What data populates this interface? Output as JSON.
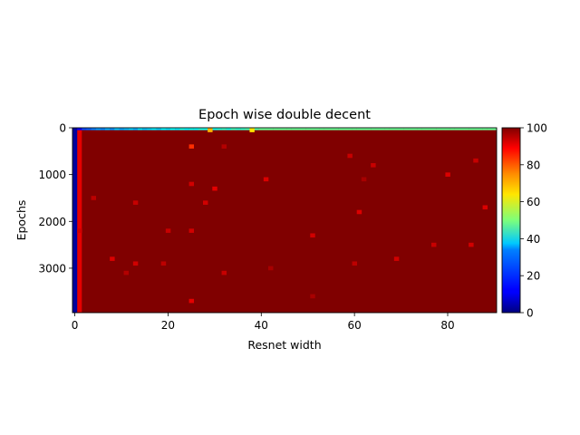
{
  "chart_data": {
    "type": "heatmap",
    "title": "Epoch wise double decent",
    "xlabel": "Resnet width",
    "ylabel": "Epochs",
    "xlim": [
      -0.5,
      90.5
    ],
    "ylim": [
      3950,
      0
    ],
    "x_ticks": [
      0,
      20,
      40,
      60,
      80
    ],
    "y_ticks": [
      0,
      1000,
      2000,
      3000
    ],
    "n_widths": 91,
    "n_epochs": 3950,
    "colormap": "jet",
    "colorbar": {
      "vmin": 0,
      "vmax": 100,
      "ticks": [
        0,
        20,
        40,
        60,
        80,
        100
      ]
    },
    "background_value": 100,
    "first_epoch_row": {
      "epoch_range": [
        0,
        50
      ],
      "value_from_width_40": 48,
      "values_widths_0_39": [
        5,
        12,
        20,
        22,
        25,
        28,
        26,
        30,
        27,
        32,
        29,
        31,
        33,
        30,
        35,
        32,
        34,
        36,
        33,
        37,
        35,
        38,
        36,
        40,
        37,
        39,
        38,
        41,
        40,
        42,
        39,
        41,
        43,
        40,
        44,
        42,
        43,
        45,
        44,
        46
      ]
    },
    "low_width_columns": [
      {
        "width": 0,
        "value": 3
      },
      {
        "width": 1,
        "value": 90
      }
    ],
    "outliers": [
      {
        "width": 25,
        "epoch": 400,
        "value": 83
      },
      {
        "width": 25,
        "epoch": 1200,
        "value": 92
      },
      {
        "width": 30,
        "epoch": 1300,
        "value": 90
      },
      {
        "width": 28,
        "epoch": 1600,
        "value": 92
      },
      {
        "width": 13,
        "epoch": 1600,
        "value": 93
      },
      {
        "width": 41,
        "epoch": 1100,
        "value": 91
      },
      {
        "width": 59,
        "epoch": 600,
        "value": 93
      },
      {
        "width": 64,
        "epoch": 800,
        "value": 93
      },
      {
        "width": 80,
        "epoch": 1000,
        "value": 91
      },
      {
        "width": 86,
        "epoch": 700,
        "value": 93
      },
      {
        "width": 61,
        "epoch": 1800,
        "value": 91
      },
      {
        "width": 88,
        "epoch": 1700,
        "value": 91
      },
      {
        "width": 4,
        "epoch": 1500,
        "value": 94
      },
      {
        "width": 1,
        "epoch": 2200,
        "value": 92
      },
      {
        "width": 20,
        "epoch": 2200,
        "value": 93
      },
      {
        "width": 25,
        "epoch": 2200,
        "value": 92
      },
      {
        "width": 51,
        "epoch": 2300,
        "value": 92
      },
      {
        "width": 77,
        "epoch": 2500,
        "value": 93
      },
      {
        "width": 85,
        "epoch": 2500,
        "value": 92
      },
      {
        "width": 8,
        "epoch": 2800,
        "value": 91
      },
      {
        "width": 69,
        "epoch": 2800,
        "value": 92
      },
      {
        "width": 13,
        "epoch": 2900,
        "value": 92
      },
      {
        "width": 19,
        "epoch": 2900,
        "value": 94
      },
      {
        "width": 60,
        "epoch": 2900,
        "value": 94
      },
      {
        "width": 11,
        "epoch": 3100,
        "value": 95
      },
      {
        "width": 32,
        "epoch": 3100,
        "value": 93
      },
      {
        "width": 25,
        "epoch": 3700,
        "value": 90
      },
      {
        "width": 32,
        "epoch": 400,
        "value": 95
      },
      {
        "width": 62,
        "epoch": 1100,
        "value": 96
      },
      {
        "width": 42,
        "epoch": 3000,
        "value": 96
      },
      {
        "width": 51,
        "epoch": 3600,
        "value": 96
      },
      {
        "width": 29,
        "epoch": 50,
        "value": 70
      },
      {
        "width": 38,
        "epoch": 50,
        "value": 65
      }
    ]
  }
}
